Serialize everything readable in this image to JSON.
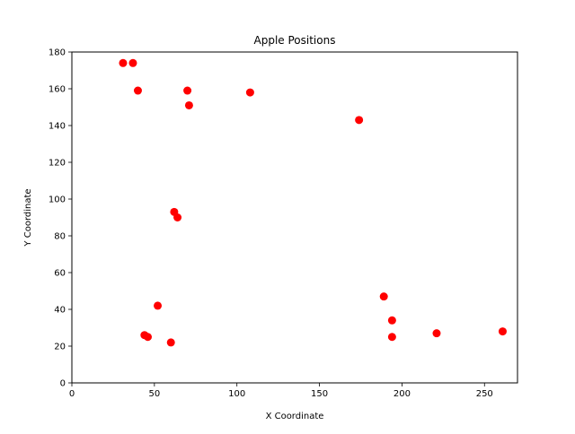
{
  "chart_data": {
    "type": "scatter",
    "title": "Apple Positions",
    "xlabel": "X Coordinate",
    "ylabel": "Y Coordinate",
    "xlim": [
      0,
      270
    ],
    "ylim": [
      0,
      180
    ],
    "xticks": [
      0,
      50,
      100,
      150,
      200,
      250
    ],
    "yticks": [
      0,
      20,
      40,
      60,
      80,
      100,
      120,
      140,
      160,
      180
    ],
    "grid": false,
    "marker_color": "#ff0000",
    "series": [
      {
        "points": [
          {
            "x": 31,
            "y": 174
          },
          {
            "x": 37,
            "y": 174
          },
          {
            "x": 40,
            "y": 159
          },
          {
            "x": 70,
            "y": 159
          },
          {
            "x": 71,
            "y": 151
          },
          {
            "x": 108,
            "y": 158
          },
          {
            "x": 174,
            "y": 143
          },
          {
            "x": 62,
            "y": 93
          },
          {
            "x": 64,
            "y": 90
          },
          {
            "x": 52,
            "y": 42
          },
          {
            "x": 44,
            "y": 26
          },
          {
            "x": 46,
            "y": 25
          },
          {
            "x": 60,
            "y": 22
          },
          {
            "x": 189,
            "y": 47
          },
          {
            "x": 194,
            "y": 34
          },
          {
            "x": 194,
            "y": 25
          },
          {
            "x": 221,
            "y": 27
          },
          {
            "x": 261,
            "y": 28
          }
        ]
      }
    ]
  }
}
